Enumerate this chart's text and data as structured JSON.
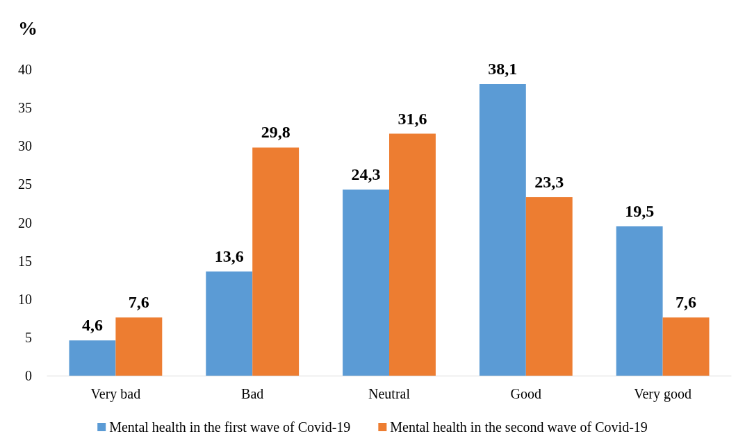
{
  "chart_data": {
    "type": "bar",
    "ylabel": "%",
    "categories": [
      "Very bad",
      "Bad",
      "Neutral",
      "Good",
      "Very good"
    ],
    "series": [
      {
        "name": "Mental health in the first wave of Covid-19",
        "color": "#5b9bd5",
        "values": [
          4.6,
          13.6,
          24.3,
          38.1,
          19.5
        ],
        "value_labels": [
          "4,6",
          "13,6",
          "24,3",
          "38,1",
          "19,5"
        ]
      },
      {
        "name": "Mental health in the second wave of Covid-19",
        "color": "#ed7d31",
        "values": [
          7.6,
          29.8,
          31.6,
          23.3,
          7.6
        ],
        "value_labels": [
          "7,6",
          "29,8",
          "31,6",
          "23,3",
          "7,6"
        ]
      }
    ],
    "ylim": [
      0,
      40
    ],
    "yticks": [
      0,
      5,
      10,
      15,
      20,
      25,
      30,
      35,
      40
    ],
    "grid": false,
    "legend": "bottom"
  }
}
